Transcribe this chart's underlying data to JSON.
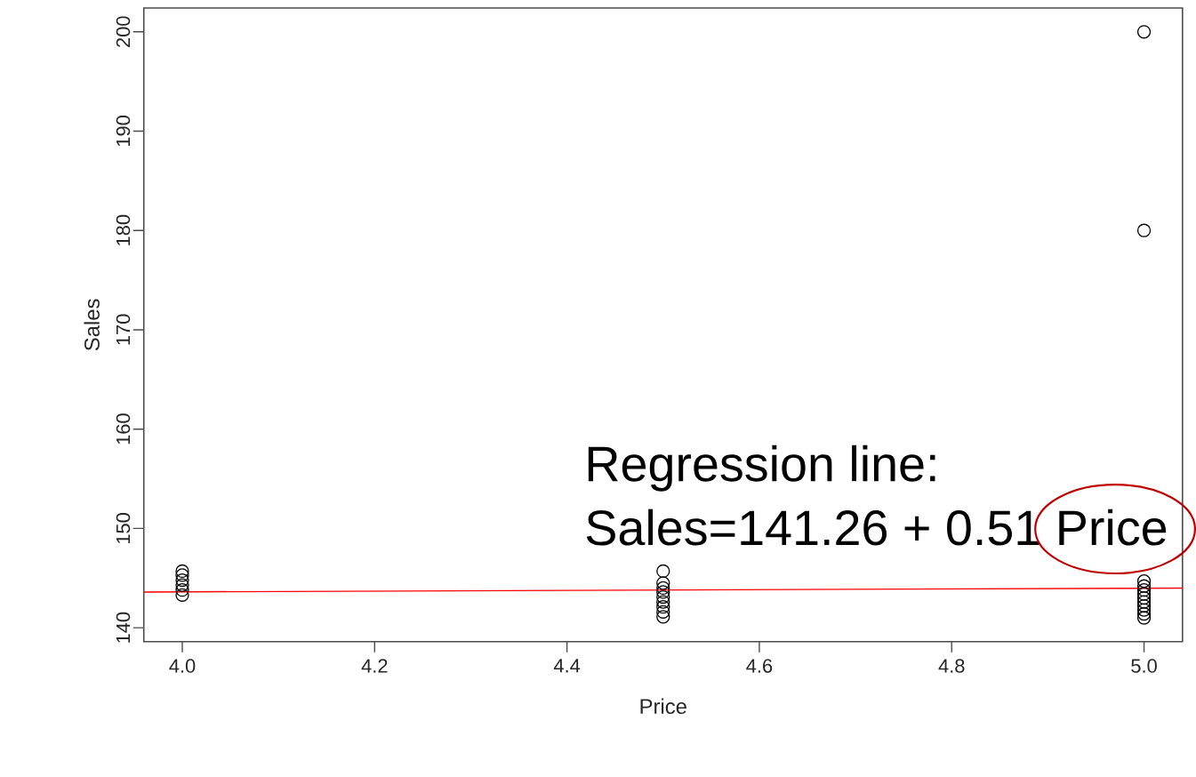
{
  "chart_data": {
    "type": "scatter",
    "xlabel": "Price",
    "ylabel": "Sales",
    "annotations": [
      "Regression line:",
      "Sales=141.26 + 0.51 Price"
    ],
    "series": [
      {
        "color": "#000000",
        "marker": "circle",
        "x": [
          4.0,
          4.0,
          4.0,
          4.0,
          4.0,
          4.0,
          4.5,
          4.5,
          4.5,
          4.5,
          4.5,
          4.5,
          4.5,
          4.5,
          4.5,
          5.0,
          5.0,
          5.0,
          5.0,
          5.0,
          5.0,
          5.0,
          5.0,
          5.0,
          5.0,
          5.0,
          5.0
        ],
        "values": [
          143.3,
          143.8,
          144.3,
          144.8,
          145.3,
          145.7,
          141.1,
          141.6,
          142.1,
          142.6,
          143.1,
          143.6,
          144.0,
          144.5,
          145.7,
          141.0,
          141.4,
          141.8,
          142.2,
          142.6,
          143.0,
          143.4,
          143.8,
          144.2,
          144.7,
          180,
          200
        ]
      },
      {
        "type": "line",
        "color": "#ff0000",
        "marker": "none",
        "x": [
          3.96,
          5.04
        ],
        "values": [
          143.6,
          144.0
        ]
      }
    ],
    "xlim": [
      3.96,
      5.04
    ],
    "ylim": [
      138.6,
      202.4
    ],
    "xticks": [
      {
        "value": 4.0,
        "label": "4.0"
      },
      {
        "value": 4.2,
        "label": "4.2"
      },
      {
        "value": 4.4,
        "label": "4.4"
      },
      {
        "value": 4.6,
        "label": "4.6"
      },
      {
        "value": 4.8,
        "label": "4.8"
      },
      {
        "value": 5.0,
        "label": "5.0"
      }
    ],
    "yticks": [
      140,
      150,
      160,
      170,
      180,
      190,
      200
    ]
  }
}
